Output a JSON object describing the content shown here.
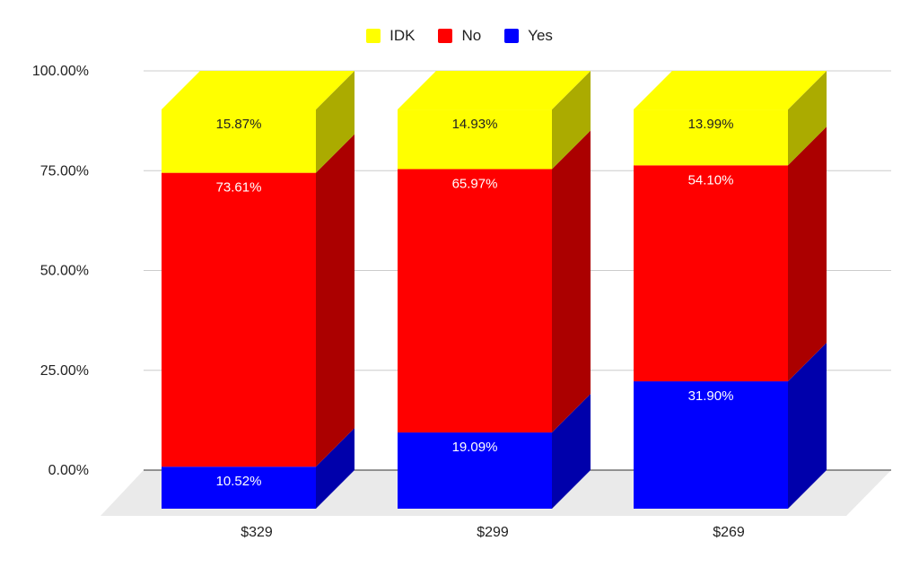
{
  "chart_data": {
    "type": "bar",
    "stacked": true,
    "three_d": true,
    "title": "",
    "xlabel": "",
    "ylabel": "",
    "categories": [
      "$329",
      "$299",
      "$269"
    ],
    "ylim": [
      0,
      100
    ],
    "yticks": [
      "0.00%",
      "25.00%",
      "50.00%",
      "75.00%",
      "100.00%"
    ],
    "grid": true,
    "legend_position": "top",
    "series": [
      {
        "name": "Yes",
        "color": "#0000ff",
        "label_color": "#ffffff",
        "values": [
          10.52,
          19.09,
          31.9
        ],
        "labels": [
          "10.52%",
          "19.09%",
          "31.90%"
        ]
      },
      {
        "name": "No",
        "color": "#ff0000",
        "label_color": "#ffffff",
        "values": [
          73.61,
          65.97,
          54.1
        ],
        "labels": [
          "73.61%",
          "65.97%",
          "54.10%"
        ]
      },
      {
        "name": "IDK",
        "color": "#ffff00",
        "label_color": "#222222",
        "values": [
          15.87,
          14.93,
          13.99
        ],
        "labels": [
          "15.87%",
          "14.93%",
          "13.99%"
        ]
      }
    ],
    "legend_order": [
      "IDK",
      "No",
      "Yes"
    ]
  }
}
